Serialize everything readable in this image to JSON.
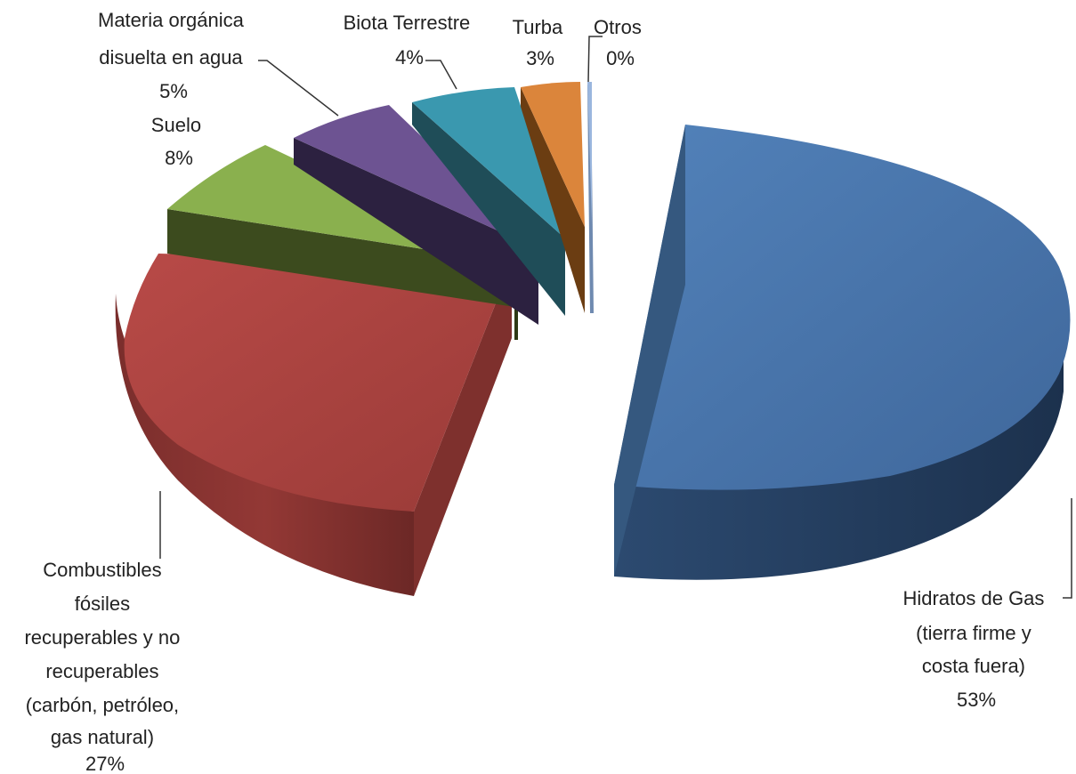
{
  "chart_data": {
    "type": "pie",
    "title": "",
    "series": [
      {
        "slices": [
          {
            "label": "Hidratos de Gas (tierra firme y costa fuera)",
            "value": 53,
            "value_label": "53%",
            "color": "#4773a8"
          },
          {
            "label": "Combustibles fósiles recuperables y no recuperables (carbón, petróleo, gas natural)",
            "value": 27,
            "value_label": "27%",
            "color": "#a8423f"
          },
          {
            "label": "Suelo",
            "value": 8,
            "value_label": "8%",
            "color": "#87a94a"
          },
          {
            "label": "Materia orgánica disuelta en agua",
            "value": 5,
            "value_label": "5%",
            "color": "#6d5392"
          },
          {
            "label": "Biota Terrestre",
            "value": 4,
            "value_label": "4%",
            "color": "#3a98af"
          },
          {
            "label": "Turba",
            "value": 3,
            "value_label": "3%",
            "color": "#db853b"
          },
          {
            "label": "Otros",
            "value": 0,
            "value_label": "0%",
            "color": "#9ab6de"
          }
        ]
      }
    ],
    "label_lines": {
      "hidratos": [
        "Hidratos de Gas",
        "(tierra firme y",
        "costa fuera)",
        "53%"
      ],
      "combustibles": [
        "Combustibles",
        "fósiles",
        "recuperables y no",
        "recuperables",
        "(carbón, petróleo,",
        "gas natural)",
        "27%"
      ],
      "suelo": [
        "Suelo",
        "8%"
      ],
      "materia": [
        "Materia orgánica",
        "disuelta en agua",
        "5%"
      ],
      "biota": [
        "Biota Terrestre",
        "4%"
      ],
      "turba": [
        "Turba",
        "3%"
      ],
      "otros": [
        "Otros",
        "0%"
      ]
    },
    "legend": "none",
    "style": "3d-exploded"
  }
}
